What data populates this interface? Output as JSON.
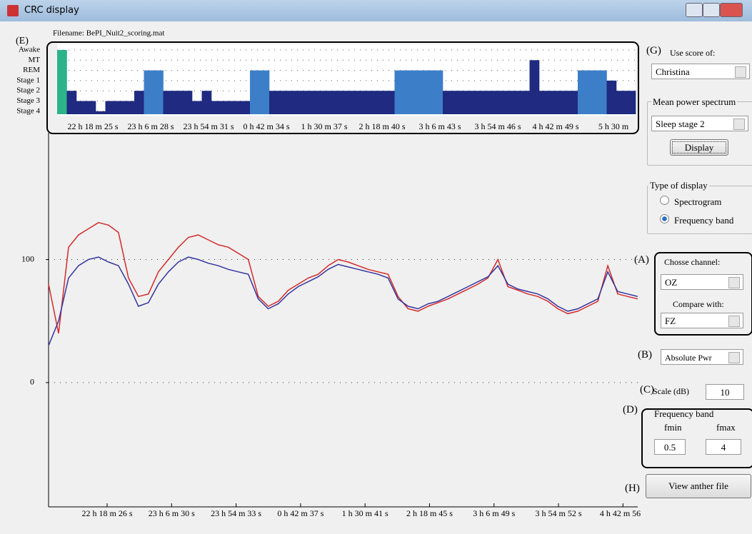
{
  "window": {
    "title": "CRC display"
  },
  "filename": "Filename: BePI_Nuit2_scoring.mat",
  "hypnogram": {
    "label": "(E)",
    "stages": [
      "Awake",
      "MT",
      "REM",
      "Stage 1",
      "Stage 2",
      "Stage 3",
      "Stage 4"
    ],
    "stage_colors": [
      "#2db38a",
      "#1f2a80",
      "#3d7ec8",
      "#1f2a80",
      "#1f2a80",
      "#1f2a80",
      "#1f2a80"
    ],
    "values": [
      0,
      4,
      5,
      5,
      6,
      5,
      5,
      5,
      4,
      2,
      2,
      4,
      4,
      4,
      5,
      4,
      5,
      5,
      5,
      5,
      2,
      2,
      4,
      4,
      4,
      4,
      4,
      4,
      4,
      4,
      4,
      4,
      4,
      4,
      4,
      2,
      2,
      2,
      2,
      2,
      4,
      4,
      4,
      4,
      4,
      4,
      4,
      4,
      4,
      1,
      4,
      4,
      4,
      4,
      2,
      2,
      2,
      3,
      4,
      4
    ],
    "xticks": [
      "22 h 18 m 25 s",
      "23 h 6 m 28 s",
      "23 h 54 m 31 s",
      "0 h 42 m 34 s",
      "1 h 30 m 37 s",
      "2 h 18 m 40 s",
      "3 h 6 m 43 s",
      "3 h 54 m 46 s",
      "4 h 42 m 49 s",
      "5 h 30 m"
    ]
  },
  "chart_data": {
    "type": "line",
    "ylim": [
      -101,
      203
    ],
    "yticks": [
      0,
      100
    ],
    "grid": true,
    "xticks": [
      "22 h 18 m 26 s",
      "23 h 6 m 30 s",
      "23 h 54 m 33 s",
      "0 h 42 m 37 s",
      "1 h 30 m 41 s",
      "2 h 18 m 45 s",
      "3 h 6 m 49 s",
      "3 h 54 m 52 s",
      "4 h 42 m 56 s"
    ],
    "series": [
      {
        "color": "#d42a2a",
        "values": [
          80,
          40,
          110,
          120,
          125,
          130,
          128,
          122,
          85,
          70,
          72,
          90,
          100,
          110,
          118,
          120,
          116,
          112,
          110,
          105,
          100,
          70,
          62,
          66,
          75,
          80,
          85,
          88,
          95,
          100,
          98,
          95,
          92,
          90,
          88,
          70,
          60,
          58,
          62,
          65,
          68,
          72,
          76,
          80,
          85,
          100,
          78,
          75,
          72,
          70,
          66,
          60,
          56,
          58,
          62,
          66,
          95,
          72,
          70,
          68
        ]
      },
      {
        "color": "#3535a0",
        "values": [
          30,
          50,
          85,
          95,
          100,
          102,
          98,
          95,
          80,
          62,
          65,
          80,
          90,
          98,
          102,
          100,
          97,
          95,
          92,
          90,
          88,
          68,
          60,
          64,
          72,
          78,
          82,
          86,
          92,
          96,
          94,
          92,
          90,
          88,
          85,
          68,
          62,
          60,
          64,
          66,
          70,
          74,
          78,
          82,
          86,
          95,
          80,
          76,
          74,
          72,
          68,
          62,
          58,
          60,
          64,
          68,
          90,
          74,
          72,
          70
        ]
      }
    ]
  },
  "panel": {
    "g_label": "(G)",
    "use_score": "Use score of:",
    "scorer": "Christina",
    "mean_power": "Mean power spectrum",
    "stage": "Sleep stage 2",
    "display": "Display",
    "type_display": "Type of display",
    "spectrogram": "Spectrogram",
    "frequency_band": "Frequency band",
    "a_label": "(A)",
    "choose_channel": "Chosse channel:",
    "channel": "OZ",
    "compare_with": "Compare with:",
    "compare_channel": "FZ",
    "b_label": "(B)",
    "power": "Absolute Pwr",
    "c_label": "(C)",
    "scale": "Scale (dB)",
    "scale_value": "10",
    "d_label": "(D)",
    "band_title": "Frequency band",
    "fmin": "fmin",
    "fmax": "fmax",
    "fmin_value": "0.5",
    "fmax_value": "4",
    "h_label": "(H)",
    "view_file": "View anther file"
  }
}
